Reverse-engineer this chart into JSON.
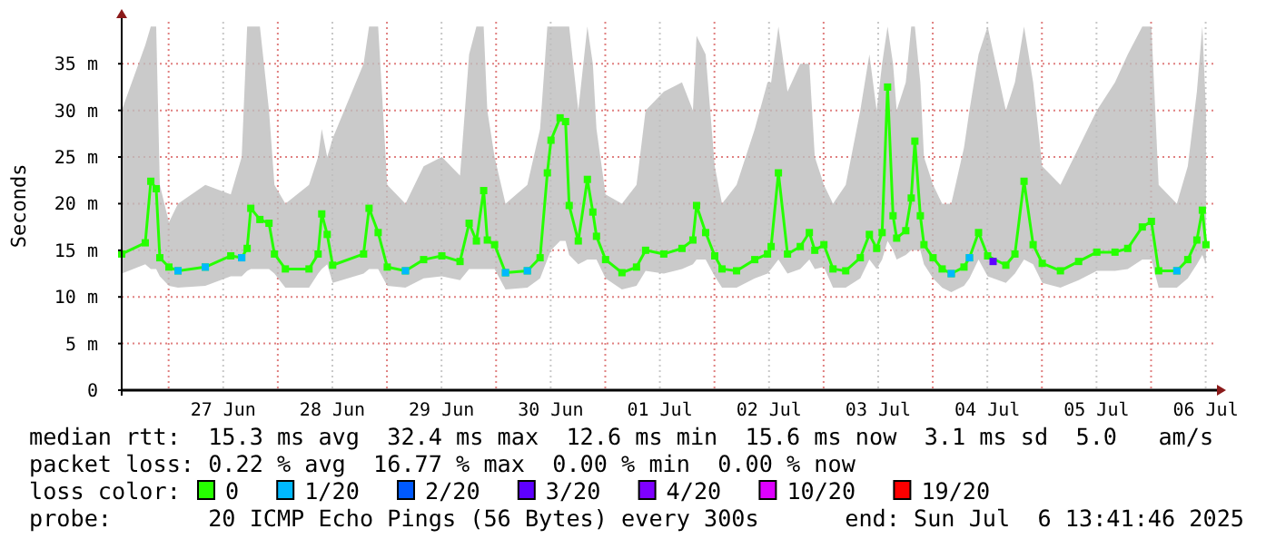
{
  "chart_data": {
    "type": "line",
    "ylabel": "Seconds",
    "legend_title": "loss color:",
    "legend": "bottom",
    "grid": true,
    "marker": "square",
    "line_style": "solid",
    "xlim": [
      "2025-06-26T13:41",
      "2025-07-06T13:41"
    ],
    "xticks": [
      {
        "value": "2025-06-27T12:00",
        "label": "27 Jun"
      },
      {
        "value": "2025-06-28T12:00",
        "label": "28 Jun"
      },
      {
        "value": "2025-06-29T12:00",
        "label": "29 Jun"
      },
      {
        "value": "2025-06-30T12:00",
        "label": "30 Jun"
      },
      {
        "value": "2025-07-01T12:00",
        "label": "01 Jul"
      },
      {
        "value": "2025-07-02T12:00",
        "label": "02 Jul"
      },
      {
        "value": "2025-07-03T12:00",
        "label": "03 Jul"
      },
      {
        "value": "2025-07-04T12:00",
        "label": "04 Jul"
      },
      {
        "value": "2025-07-05T12:00",
        "label": "05 Jul"
      },
      {
        "value": "2025-07-06T12:00",
        "label": "06 Jul"
      }
    ],
    "ylim": [
      0,
      39.5
    ],
    "yticks": [
      0,
      {
        "value": 5,
        "label": "5 m"
      },
      {
        "value": 10,
        "label": "10 m"
      },
      {
        "value": 15,
        "label": "15 m"
      },
      {
        "value": 20,
        "label": "20 m"
      },
      {
        "value": 25,
        "label": "25 m"
      },
      {
        "value": 30,
        "label": "30 m"
      },
      {
        "value": 35,
        "label": "35 m"
      }
    ],
    "annotations": [
      "median rtt:  15.3 ms avg  32.4 ms max  12.6 ms min  15.6 ms now  3.1 ms sd  5.0   am/s",
      "packet loss: 0.22 % avg  16.77 % max  0.00 % min  0.00 % now",
      "probe:       20 ICMP Echo Pings (56 Bytes) every 300s",
      "end: Sun Jul  6 13:41:46 2025"
    ],
    "series": [
      {
        "name": "0",
        "color": "#26ff00",
        "x": [
          "2025-06-26T13:41",
          "2025-06-26T18:52",
          "2025-06-26T20:05",
          "2025-06-26T21:16",
          "2025-06-26T22:04",
          "2025-06-27T00:04",
          "2025-06-27T02:04",
          "2025-06-27T08:04",
          "2025-06-27T13:40",
          "2025-06-27T16:04",
          "2025-06-27T17:16",
          "2025-06-27T18:04",
          "2025-06-27T20:04",
          "2025-06-27T22:04",
          "2025-06-27T23:16",
          "2025-06-28T01:40",
          "2025-06-28T06:52",
          "2025-06-28T08:52",
          "2025-06-28T09:40",
          "2025-06-28T10:52",
          "2025-06-28T12:04",
          "2025-06-28T18:52",
          "2025-06-28T20:04",
          "2025-06-28T22:04",
          "2025-06-29T00:04",
          "2025-06-29T04:04",
          "2025-06-29T08:04",
          "2025-06-29T12:04",
          "2025-06-29T16:04",
          "2025-06-29T18:04",
          "2025-06-29T19:40",
          "2025-06-29T21:16",
          "2025-06-29T22:04",
          "2025-06-29T23:40",
          "2025-06-30T02:04",
          "2025-06-30T06:52",
          "2025-06-30T09:40",
          "2025-06-30T11:16",
          "2025-06-30T12:04",
          "2025-06-30T14:04",
          "2025-06-30T15:16",
          "2025-06-30T16:04",
          "2025-06-30T18:04",
          "2025-06-30T20:04",
          "2025-06-30T21:16",
          "2025-06-30T22:04",
          "2025-07-01T00:04",
          "2025-07-01T03:40",
          "2025-07-01T06:52",
          "2025-07-01T08:52",
          "2025-07-01T12:52",
          "2025-07-01T16:52",
          "2025-07-01T19:16",
          "2025-07-01T20:04",
          "2025-07-01T22:04",
          "2025-07-02T00:04",
          "2025-07-02T01:40",
          "2025-07-02T04:52",
          "2025-07-02T08:52",
          "2025-07-02T11:40",
          "2025-07-02T12:28",
          "2025-07-02T14:04",
          "2025-07-02T16:04",
          "2025-07-02T18:52",
          "2025-07-02T20:52",
          "2025-07-02T22:04",
          "2025-07-03T00:04",
          "2025-07-03T02:04",
          "2025-07-03T04:52",
          "2025-07-03T08:04",
          "2025-07-03T10:04",
          "2025-07-03T11:40",
          "2025-07-03T12:52",
          "2025-07-03T14:04",
          "2025-07-03T15:16",
          "2025-07-03T16:04",
          "2025-07-03T18:04",
          "2025-07-03T19:16",
          "2025-07-03T20:04",
          "2025-07-03T21:16",
          "2025-07-03T22:04",
          "2025-07-04T00:04",
          "2025-07-04T02:04",
          "2025-07-04T04:04",
          "2025-07-04T06:52",
          "2025-07-04T08:04",
          "2025-07-04T10:04",
          "2025-07-04T12:04",
          "2025-07-04T16:04",
          "2025-07-04T18:04",
          "2025-07-04T20:04",
          "2025-07-04T22:04",
          "2025-07-05T00:04",
          "2025-07-05T04:04",
          "2025-07-05T08:04",
          "2025-07-05T12:04",
          "2025-07-05T16:04",
          "2025-07-05T18:52",
          "2025-07-05T22:04",
          "2025-07-06T00:04",
          "2025-07-06T01:40",
          "2025-07-06T05:40",
          "2025-07-06T08:04",
          "2025-07-06T10:04",
          "2025-07-06T11:16",
          "2025-07-06T12:04"
        ],
        "values": [
          14.6,
          15.8,
          22.4,
          21.6,
          14.2,
          13.2,
          12.8,
          13.2,
          14.4,
          14.2,
          15.2,
          19.5,
          18.3,
          17.9,
          14.6,
          13,
          13,
          14.6,
          18.9,
          16.7,
          13.4,
          14.6,
          19.5,
          16.9,
          13.2,
          12.8,
          14,
          14.4,
          13.8,
          17.9,
          16,
          21.4,
          16.1,
          15.6,
          12.6,
          12.8,
          14.2,
          23.3,
          26.8,
          29.2,
          28.8,
          19.8,
          16,
          22.6,
          19.1,
          16.5,
          14,
          12.6,
          13.2,
          15,
          14.6,
          15.2,
          16.1,
          19.8,
          16.9,
          14.4,
          13,
          12.8,
          14,
          14.6,
          15.4,
          23.3,
          14.6,
          15.4,
          16.9,
          15,
          15.6,
          13,
          12.8,
          14.2,
          16.7,
          15.2,
          16.9,
          32.5,
          18.7,
          16.3,
          17.1,
          20.6,
          26.7,
          18.7,
          15.6,
          14.2,
          13,
          12.5,
          13.2,
          14.2,
          16.9,
          14.4,
          13.4,
          14.6,
          22.4,
          15.6,
          13.6,
          12.8,
          13.8,
          14.8,
          14.8,
          15.2,
          17.5,
          18.1,
          12.8,
          12.8,
          14,
          16.1,
          19.3,
          15.6
        ],
        "lower": [
          12.5,
          13.5,
          13,
          13,
          12.2,
          11.2,
          11,
          11.2,
          12.2,
          12.2,
          12.8,
          13,
          13,
          13,
          12.5,
          11,
          11,
          12.5,
          13,
          13.5,
          11.5,
          12.5,
          13,
          13,
          11.2,
          11,
          12,
          12.2,
          11.8,
          13,
          13,
          13,
          13,
          13,
          10.8,
          11,
          12,
          14,
          15,
          16,
          16,
          14.5,
          13.5,
          14,
          14,
          14,
          12,
          10.8,
          11.2,
          12.8,
          12.5,
          13,
          13.5,
          14,
          14,
          12.2,
          11,
          11,
          12,
          12.5,
          13,
          14,
          12.5,
          13,
          14,
          13,
          13.2,
          11,
          11,
          12,
          14,
          13,
          14,
          16,
          15,
          14,
          14.5,
          15,
          15,
          15,
          13.5,
          12,
          11,
          10.5,
          11.2,
          12,
          14,
          12.2,
          11.5,
          12.5,
          14,
          13.5,
          11.5,
          11,
          11.8,
          12.8,
          12.8,
          13,
          14,
          14,
          11,
          11,
          12,
          13.5,
          14.5,
          13.5
        ],
        "upper": [
          30,
          37,
          39,
          39,
          22,
          18,
          20,
          22,
          21,
          25,
          39,
          39,
          39,
          30,
          22,
          20,
          22,
          25,
          28,
          25,
          27,
          35,
          39,
          39,
          22,
          20,
          24,
          25,
          23,
          36,
          39,
          39,
          30,
          25,
          20,
          22,
          28,
          39,
          39,
          39,
          39,
          39,
          30,
          39,
          35,
          28,
          21,
          20,
          22,
          30,
          32,
          33,
          30,
          38,
          36,
          24,
          20,
          22,
          28,
          33,
          33,
          39,
          32,
          35,
          35,
          25,
          22,
          20,
          22,
          30,
          36,
          30,
          35,
          39,
          35,
          30,
          33,
          39,
          39,
          33,
          25,
          22,
          20,
          20,
          26,
          30,
          36,
          39,
          30,
          33,
          39,
          33,
          24,
          22,
          26,
          30,
          33,
          36,
          39,
          39,
          22,
          20,
          24,
          32,
          39,
          30
        ]
      },
      {
        "name": "1/20",
        "type": "scatter",
        "color": "#00b8ff",
        "x": [
          "2025-06-27T02:04",
          "2025-06-27T08:04",
          "2025-06-27T16:04",
          "2025-06-29T04:04",
          "2025-06-30T02:04",
          "2025-06-30T06:52",
          "2025-07-04T04:04",
          "2025-07-04T08:04",
          "2025-07-06T05:40"
        ],
        "values": [
          12.8,
          13.2,
          14.2,
          12.8,
          12.6,
          12.8,
          12.5,
          14.2,
          12.8
        ]
      },
      {
        "name": "2/20",
        "type": "scatter",
        "color": "#0059ff"
      },
      {
        "name": "3/20",
        "type": "scatter",
        "color": "#5e00ff",
        "x": [
          "2025-07-04T13:16"
        ],
        "values": [
          13.8
        ]
      },
      {
        "name": "4/20",
        "type": "scatter",
        "color": "#7e00ff"
      },
      {
        "name": "10/20",
        "type": "scatter",
        "color": "#dd00ff"
      },
      {
        "name": "19/20",
        "type": "scatter",
        "color": "#ff0000"
      }
    ]
  }
}
